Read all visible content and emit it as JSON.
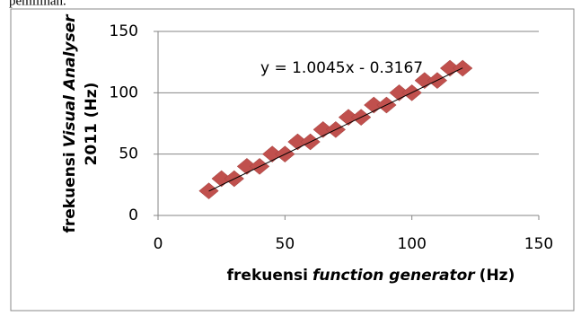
{
  "page_text": "pemilihan.",
  "chart_data": {
    "type": "scatter",
    "x": [
      20,
      25,
      30,
      35,
      40,
      45,
      50,
      55,
      60,
      65,
      70,
      75,
      80,
      85,
      90,
      95,
      100,
      105,
      110,
      115,
      120
    ],
    "values": [
      20,
      30,
      30,
      40,
      40,
      50,
      50,
      60,
      60,
      70,
      70,
      80,
      80,
      90,
      90,
      100,
      100,
      110,
      110,
      120,
      120
    ],
    "color": "#c0504d",
    "xlim": [
      0,
      150
    ],
    "xticks": [
      0,
      50,
      100,
      150
    ],
    "ylim": [
      0,
      150
    ],
    "yticks": [
      0,
      50,
      100,
      150
    ],
    "grid": true,
    "xlabel_parts": [
      "frekuensi",
      "function generator",
      "(Hz)"
    ],
    "ylabel_parts": [
      "frekuensi",
      "Visual Analyser",
      "2011 (Hz)"
    ],
    "trendline": {
      "label": "y = 1.0045x - 0.3167",
      "slope": 1.0045,
      "intercept": -0.3167
    }
  }
}
